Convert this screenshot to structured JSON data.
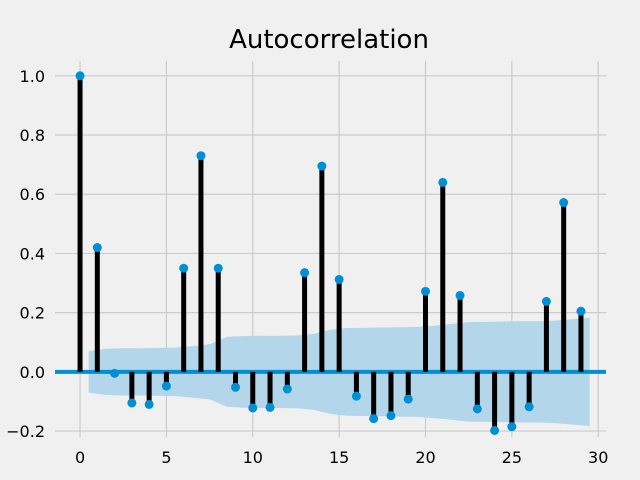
{
  "chart_data": {
    "type": "stem",
    "title": "Autocorrelation",
    "xlabel": "",
    "ylabel": "",
    "xlim": [
      -1.45,
      30.45
    ],
    "ylim": [
      -0.22,
      1.05
    ],
    "xticks": [
      0,
      5,
      10,
      15,
      20,
      25,
      30
    ],
    "yticks": [
      -0.2,
      0.0,
      0.2,
      0.4,
      0.6,
      0.8,
      1.0
    ],
    "ytick_labels": [
      "−0.2",
      "0.0",
      "0.2",
      "0.4",
      "0.6",
      "0.8",
      "1.0"
    ],
    "grid": true,
    "colors": {
      "background": "#f0f0f0",
      "grid": "#cbcbcb",
      "stem": "#000000",
      "marker": "#008fd5",
      "baseline": "#008fd5",
      "confidence_band": "#b3d6ea"
    },
    "lags": [
      0,
      1,
      2,
      3,
      4,
      5,
      6,
      7,
      8,
      9,
      10,
      11,
      12,
      13,
      14,
      15,
      16,
      17,
      18,
      19,
      20,
      21,
      22,
      23,
      24,
      25,
      26,
      27,
      28,
      29
    ],
    "values": [
      1.0,
      0.42,
      -0.005,
      -0.105,
      -0.11,
      -0.048,
      0.35,
      0.73,
      0.35,
      -0.052,
      -0.122,
      -0.12,
      -0.058,
      0.335,
      0.695,
      0.312,
      -0.082,
      -0.158,
      -0.148,
      -0.092,
      0.272,
      0.64,
      0.258,
      -0.125,
      -0.198,
      -0.185,
      -0.118,
      0.238,
      0.572,
      0.205
    ],
    "confidence_band": {
      "x": [
        0.5,
        1.5,
        2.5,
        3.5,
        4.5,
        5.5,
        6.5,
        7.5,
        8.5,
        9.5,
        10.5,
        11.5,
        12.5,
        13.5,
        14.5,
        15.5,
        16.5,
        17.5,
        18.5,
        19.5,
        20.5,
        21.5,
        22.5,
        23.5,
        24.5,
        25.5,
        26.5,
        27.5,
        28.5,
        29.5
      ],
      "upper": [
        0.07,
        0.078,
        0.08,
        0.08,
        0.081,
        0.082,
        0.087,
        0.093,
        0.118,
        0.121,
        0.122,
        0.122,
        0.123,
        0.128,
        0.142,
        0.148,
        0.149,
        0.15,
        0.151,
        0.152,
        0.156,
        0.162,
        0.168,
        0.169,
        0.17,
        0.171,
        0.171,
        0.173,
        0.178,
        0.183
      ],
      "lower": [
        -0.07,
        -0.078,
        -0.08,
        -0.08,
        -0.081,
        -0.082,
        -0.087,
        -0.093,
        -0.118,
        -0.121,
        -0.122,
        -0.122,
        -0.123,
        -0.128,
        -0.142,
        -0.148,
        -0.149,
        -0.15,
        -0.151,
        -0.152,
        -0.156,
        -0.162,
        -0.168,
        -0.169,
        -0.17,
        -0.171,
        -0.171,
        -0.173,
        -0.178,
        -0.183
      ]
    }
  }
}
